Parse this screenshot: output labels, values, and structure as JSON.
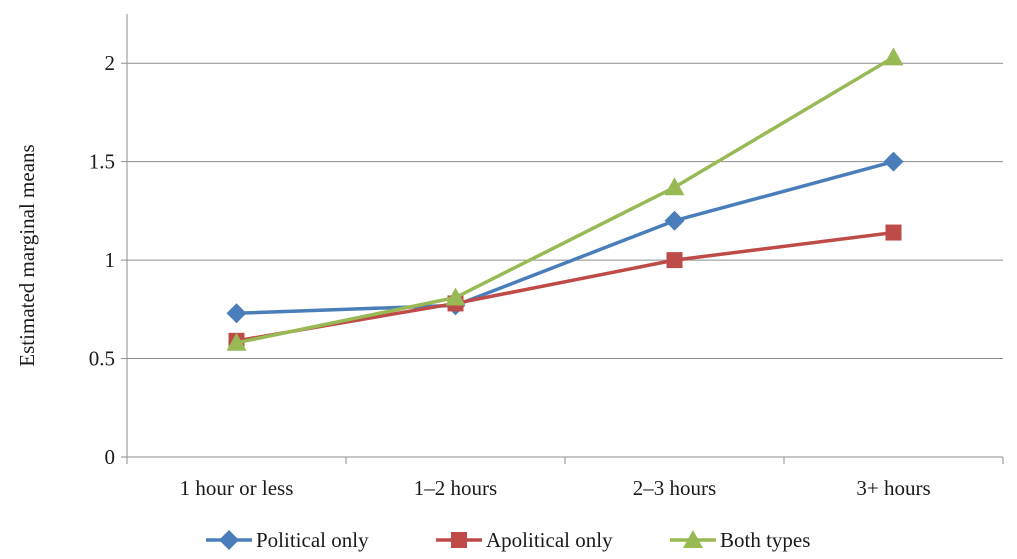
{
  "chart_data": {
    "type": "line",
    "title": "",
    "xlabel": "",
    "ylabel": "Estimated marginal means",
    "ylim": [
      0,
      2.25
    ],
    "yticks": [
      0,
      0.5,
      1,
      1.5,
      2
    ],
    "ytick_labels": [
      "0",
      "0.5",
      "1",
      "1.5",
      "2"
    ],
    "grid": "horizontal",
    "legend_position": "bottom",
    "categories": [
      "1 hour or less",
      "1–2 hours",
      "2–3 hours",
      "3+ hours"
    ],
    "series": [
      {
        "name": "Political only",
        "values": [
          0.73,
          0.77,
          1.2,
          1.5
        ],
        "color": "#4a7ebb",
        "marker": "diamond"
      },
      {
        "name": "Apolitical only",
        "values": [
          0.59,
          0.78,
          1.0,
          1.14
        ],
        "color": "#be4b48",
        "marker": "square"
      },
      {
        "name": "Both types",
        "values": [
          0.58,
          0.81,
          1.37,
          2.03
        ],
        "color": "#98b954",
        "marker": "triangle"
      }
    ]
  }
}
